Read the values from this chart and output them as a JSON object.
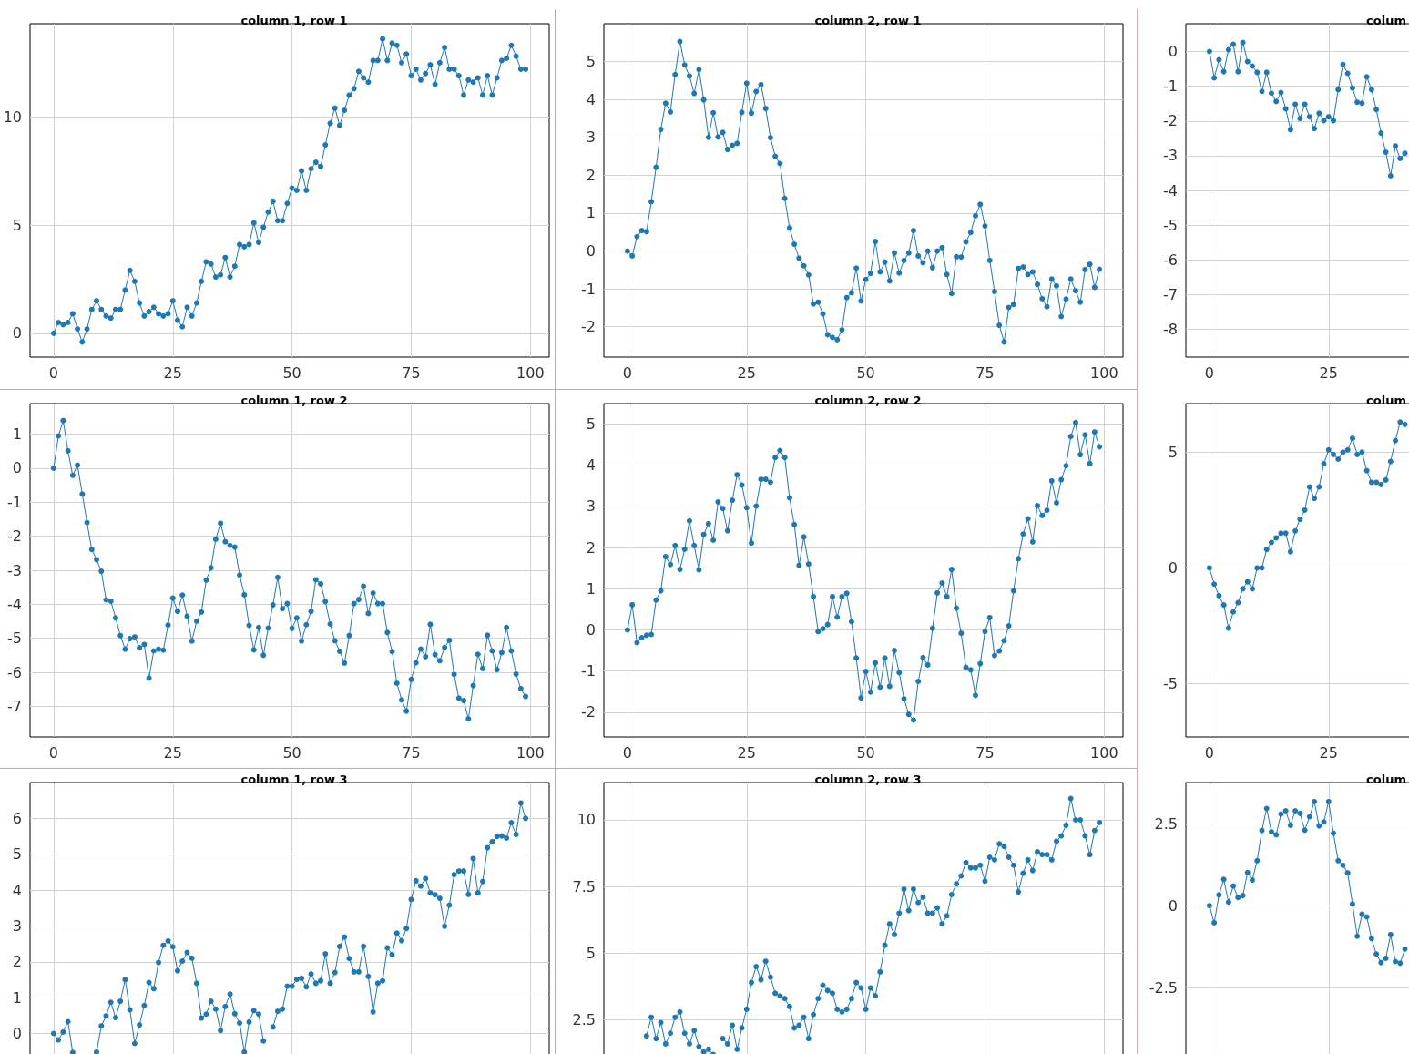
{
  "chart_data": [
    {
      "type": "line",
      "title": "column 1, row 1",
      "marker": "circle",
      "grid": true,
      "xlim": [
        -4.95,
        103.95
      ],
      "xticks": [
        0,
        25,
        50,
        75,
        100
      ],
      "ylim": [
        -1.1,
        14.3
      ],
      "yticks": [
        0,
        5,
        10
      ],
      "x": [
        0,
        1,
        2,
        3,
        4,
        5,
        6,
        7,
        8,
        9,
        10,
        11,
        12,
        13,
        14,
        15,
        16,
        17,
        18,
        19,
        20,
        21,
        22,
        23,
        24,
        25,
        26,
        27,
        28,
        29,
        30,
        31,
        32,
        33,
        34,
        35,
        36,
        37,
        38,
        39,
        40,
        41,
        42,
        43,
        44,
        45,
        46,
        47,
        48,
        49,
        50,
        51,
        52,
        53,
        54,
        55,
        56,
        57,
        58,
        59,
        60,
        61,
        62,
        63,
        64,
        65,
        66,
        67,
        68,
        69,
        70,
        71,
        72,
        73,
        74,
        75,
        76,
        77,
        78,
        79,
        80,
        81,
        82,
        83,
        84,
        85,
        86,
        87,
        88,
        89,
        90,
        91,
        92,
        93,
        94,
        95,
        96,
        97,
        98,
        99
      ],
      "series": [
        {
          "color": "#1f77b4",
          "values": [
            0,
            0.5,
            0.4,
            0.5,
            0.9,
            0.2,
            -0.4,
            0.2,
            1.1,
            1.5,
            1.1,
            0.8,
            0.7,
            1.1,
            1.1,
            2.0,
            2.9,
            2.4,
            1.4,
            0.8,
            1.0,
            1.2,
            0.9,
            0.8,
            0.9,
            1.5,
            0.6,
            0.3,
            1.2,
            0.8,
            1.4,
            2.4,
            3.3,
            3.2,
            2.6,
            2.7,
            3.5,
            2.6,
            3.1,
            4.1,
            4.0,
            4.1,
            5.1,
            4.2,
            4.9,
            5.6,
            6.1,
            5.2,
            5.2,
            6.0,
            6.7,
            6.6,
            7.5,
            6.6,
            7.6,
            7.9,
            7.7,
            8.7,
            9.7,
            10.4,
            9.6,
            10.3,
            11.0,
            11.3,
            12.1,
            11.8,
            11.6,
            12.6,
            12.6,
            13.6,
            12.6,
            13.4,
            13.3,
            12.5,
            12.9,
            11.9,
            12.2,
            11.7,
            12.0,
            12.4,
            11.5,
            12.5,
            13.2,
            12.2,
            12.2,
            11.9,
            11.0,
            11.7,
            11.6,
            11.8,
            11.0,
            11.9,
            11.0,
            11.8,
            12.6,
            12.7,
            13.3,
            12.8,
            12.2,
            12.2
          ]
        }
      ]
    },
    {
      "type": "line",
      "title": "column 2, row 1",
      "marker": "circle",
      "grid": true,
      "xlim": [
        -4.95,
        103.95
      ],
      "xticks": [
        0,
        25,
        50,
        75,
        100
      ],
      "ylim": [
        -2.8,
        6.0
      ],
      "yticks": [
        -2,
        -1,
        0,
        1,
        2,
        3,
        4,
        5
      ],
      "x": [
        0,
        1,
        2,
        3,
        4,
        5,
        6,
        7,
        8,
        9,
        10,
        11,
        12,
        13,
        14,
        15,
        16,
        17,
        18,
        19,
        20,
        21,
        22,
        23,
        24,
        25,
        26,
        27,
        28,
        29,
        30,
        31,
        32,
        33,
        34,
        35,
        36,
        37,
        38,
        39,
        40,
        41,
        42,
        43,
        44,
        45,
        46,
        47,
        48,
        49,
        50,
        51,
        52,
        53,
        54,
        55,
        56,
        57,
        58,
        59,
        60,
        61,
        62,
        63,
        64,
        65,
        66,
        67,
        68,
        69,
        70,
        71,
        72,
        73,
        74,
        75,
        76,
        77,
        78,
        79,
        80,
        81,
        82,
        83,
        84,
        85,
        86,
        87,
        88,
        89,
        90,
        91,
        92,
        93,
        94,
        95,
        96,
        97,
        98,
        99
      ],
      "series": [
        {
          "color": "#1f77b4",
          "values": [
            0,
            -0.13,
            0.38,
            0.54,
            0.51,
            1.3,
            2.21,
            3.21,
            3.9,
            3.67,
            4.66,
            5.53,
            4.91,
            4.62,
            4.16,
            4.79,
            3.99,
            3,
            3.65,
            3.01,
            3.13,
            2.68,
            2.79,
            2.84,
            3.66,
            4.43,
            3.64,
            4.21,
            4.39,
            3.76,
            2.99,
            2.5,
            2.31,
            1.39,
            0.61,
            0.18,
            -0.19,
            -0.39,
            -0.63,
            -1.4,
            -1.35,
            -1.66,
            -2.21,
            -2.28,
            -2.34,
            -2.08,
            -1.23,
            -1.1,
            -0.45,
            -1.32,
            -0.75,
            -0.59,
            0.25,
            -0.55,
            -0.29,
            -0.79,
            -0.05,
            -0.58,
            -0.25,
            -0.05,
            0.54,
            -0.13,
            -0.31,
            0,
            -0.44,
            0,
            0.09,
            -0.62,
            -1.12,
            -0.15,
            -0.16,
            0.24,
            0.49,
            0.93,
            1.23,
            0.66,
            -0.25,
            -1.07,
            -1.96,
            -2.4,
            -1.49,
            -1.41,
            -0.46,
            -0.42,
            -0.62,
            -0.55,
            -0.88,
            -1.26,
            -1.47,
            -0.74,
            -0.92,
            -1.73,
            -1.27,
            -0.74,
            -1.05,
            -1.35,
            -0.49,
            -0.35,
            -0.96,
            -0.48
          ]
        }
      ]
    },
    {
      "type": "line",
      "title": "colum",
      "marker": "circle",
      "grid": true,
      "xlim": [
        -4.95,
        103.95
      ],
      "xticks": [
        0,
        25
      ],
      "ylim": [
        -8.8,
        0.8
      ],
      "yticks": [
        -8,
        -7,
        -6,
        -5,
        -4,
        -3,
        -2,
        -1,
        0
      ],
      "x": [
        0,
        1,
        2,
        3,
        4,
        5,
        6,
        7,
        8,
        9,
        10,
        11,
        12,
        13,
        14,
        15,
        16,
        17,
        18,
        19,
        20,
        21,
        22,
        23,
        24,
        25,
        26,
        27,
        28,
        29,
        30,
        31,
        32,
        33,
        34,
        35,
        36,
        37,
        38,
        39,
        40,
        41
      ],
      "series": [
        {
          "color": "#1f77b4",
          "values": [
            0,
            -0.76,
            -0.24,
            -0.58,
            0.05,
            0.21,
            -0.58,
            0.26,
            -0.29,
            -0.42,
            -0.6,
            -1.15,
            -0.6,
            -1.2,
            -1.44,
            -1.18,
            -1.65,
            -2.25,
            -1.52,
            -1.93,
            -1.52,
            -1.88,
            -2.22,
            -1.78,
            -1.99,
            -1.88,
            -1.99,
            -1.1,
            -0.37,
            -0.63,
            -1.05,
            -1.46,
            -1.49,
            -0.73,
            -1.1,
            -1.67,
            -2.35,
            -2.9,
            -3.58,
            -2.72,
            -3.08,
            -2.93
          ]
        }
      ]
    },
    {
      "type": "line",
      "title": "column 1, row 2",
      "marker": "circle",
      "grid": true,
      "xlim": [
        -4.95,
        103.95
      ],
      "xticks": [
        0,
        25,
        50,
        75,
        100
      ],
      "ylim": [
        -7.9,
        1.9
      ],
      "yticks": [
        -7,
        -6,
        -5,
        -4,
        -3,
        -2,
        -1,
        0,
        1
      ],
      "x": [
        0,
        1,
        2,
        3,
        4,
        5,
        6,
        7,
        8,
        9,
        10,
        11,
        12,
        13,
        14,
        15,
        16,
        17,
        18,
        19,
        20,
        21,
        22,
        23,
        24,
        25,
        26,
        27,
        28,
        29,
        30,
        31,
        32,
        33,
        34,
        35,
        36,
        37,
        38,
        39,
        40,
        41,
        42,
        43,
        44,
        45,
        46,
        47,
        48,
        49,
        50,
        51,
        52,
        53,
        54,
        55,
        56,
        57,
        58,
        59,
        60,
        61,
        62,
        63,
        64,
        65,
        66,
        67,
        68,
        69,
        70,
        71,
        72,
        73,
        74,
        75,
        76,
        77,
        78,
        79,
        80,
        81,
        82,
        83,
        84,
        85,
        86,
        87,
        88,
        89,
        90,
        91,
        92,
        93,
        94,
        95,
        96,
        97,
        98,
        99
      ],
      "series": [
        {
          "color": "#1f77b4",
          "values": [
            0,
            0.95,
            1.4,
            0.51,
            -0.21,
            0.09,
            -0.76,
            -1.6,
            -2.39,
            -2.69,
            -3.03,
            -3.87,
            -3.91,
            -4.4,
            -4.92,
            -5.32,
            -5.01,
            -4.96,
            -5.28,
            -5.18,
            -6.17,
            -5.37,
            -5.32,
            -5.35,
            -4.61,
            -3.82,
            -4.21,
            -3.73,
            -4.35,
            -5.08,
            -4.5,
            -4.23,
            -3.29,
            -2.93,
            -2.09,
            -1.62,
            -2.16,
            -2.27,
            -2.32,
            -3.14,
            -3.72,
            -4.62,
            -5.34,
            -4.68,
            -5.5,
            -4.7,
            -4.02,
            -3.21,
            -4.13,
            -3.98,
            -4.71,
            -4.4,
            -5.08,
            -4.6,
            -4.21,
            -3.28,
            -3.4,
            -3.92,
            -4.58,
            -5.07,
            -5.38,
            -5.73,
            -4.92,
            -3.98,
            -3.86,
            -3.47,
            -4.27,
            -3.67,
            -3.98,
            -3.98,
            -4.83,
            -5.39,
            -6.32,
            -6.81,
            -7.14,
            -6.21,
            -5.72,
            -5.32,
            -5.54,
            -4.59,
            -5.48,
            -5.66,
            -5.27,
            -5.06,
            -6.06,
            -6.76,
            -6.83,
            -7.37,
            -6.39,
            -5.47,
            -5.89,
            -4.91,
            -5.37,
            -5.92,
            -5.42,
            -4.68,
            -5.37,
            -6.05,
            -6.48,
            -6.71
          ]
        }
      ]
    },
    {
      "type": "line",
      "title": "column 2, row 2",
      "marker": "circle",
      "grid": true,
      "xlim": [
        -4.95,
        103.95
      ],
      "xticks": [
        0,
        25,
        50,
        75,
        100
      ],
      "ylim": [
        -2.6,
        5.5
      ],
      "yticks": [
        -2,
        -1,
        0,
        1,
        2,
        3,
        4,
        5
      ],
      "x": [
        0,
        1,
        2,
        3,
        4,
        5,
        6,
        7,
        8,
        9,
        10,
        11,
        12,
        13,
        14,
        15,
        16,
        17,
        18,
        19,
        20,
        21,
        22,
        23,
        24,
        25,
        26,
        27,
        28,
        29,
        30,
        31,
        32,
        33,
        34,
        35,
        36,
        37,
        38,
        39,
        40,
        41,
        42,
        43,
        44,
        45,
        46,
        47,
        48,
        49,
        50,
        51,
        52,
        53,
        54,
        55,
        56,
        57,
        58,
        59,
        60,
        61,
        62,
        63,
        64,
        65,
        66,
        67,
        68,
        69,
        70,
        71,
        72,
        73,
        74,
        75,
        76,
        77,
        78,
        79,
        80,
        81,
        82,
        83,
        84,
        85,
        86,
        87,
        88,
        89,
        90,
        91,
        92,
        93,
        94,
        95,
        96,
        97,
        98,
        99
      ],
      "series": [
        {
          "color": "#1f77b4",
          "values": [
            0,
            0.61,
            -0.31,
            -0.19,
            -0.13,
            -0.11,
            0.73,
            0.95,
            1.78,
            1.59,
            2.05,
            1.47,
            1.96,
            2.65,
            2.05,
            1.46,
            2.32,
            2.58,
            2.18,
            3.11,
            2.95,
            2.41,
            3.15,
            3.77,
            3.52,
            2.97,
            2.11,
            3.01,
            3.66,
            3.66,
            3.59,
            4.19,
            4.36,
            4.19,
            3.21,
            2.56,
            1.57,
            2.26,
            1.6,
            0.81,
            -0.04,
            0.03,
            0.13,
            0.81,
            0.31,
            0.81,
            0.89,
            0.2,
            -0.68,
            -1.65,
            -1.01,
            -1.51,
            -0.8,
            -1.39,
            -0.68,
            -1.37,
            -0.5,
            -1.04,
            -1.67,
            -2.05,
            -2.19,
            -1.25,
            -0.67,
            -0.85,
            0.04,
            0.9,
            1.14,
            0.81,
            1.47,
            0.53,
            -0.08,
            -0.91,
            -0.97,
            -1.59,
            -0.82,
            -0.04,
            0.3,
            -0.62,
            -0.51,
            -0.26,
            0.1,
            0.95,
            1.73,
            2.33,
            2.7,
            2.14,
            3.02,
            2.78,
            2.91,
            3.62,
            3.09,
            3.65,
            3.99,
            4.7,
            5.04,
            4.26,
            4.74,
            4.04,
            4.81,
            4.45
          ]
        }
      ]
    },
    {
      "type": "line",
      "title": "colum",
      "marker": "circle",
      "grid": true,
      "xlim": [
        -4.95,
        103.95
      ],
      "xticks": [
        0,
        25
      ],
      "ylim": [
        -7.3,
        7.1
      ],
      "yticks": [
        -5,
        0,
        5
      ],
      "x": [
        0,
        1,
        2,
        3,
        4,
        5,
        6,
        7,
        8,
        9,
        10,
        11,
        12,
        13,
        14,
        15,
        16,
        17,
        18,
        19,
        20,
        21,
        22,
        23,
        24,
        25,
        26,
        27,
        28,
        29,
        30,
        31,
        32,
        33,
        34,
        35,
        36,
        37,
        38,
        39,
        40,
        41
      ],
      "series": [
        {
          "color": "#1f77b4",
          "values": [
            0,
            -0.7,
            -1.2,
            -1.6,
            -2.6,
            -1.9,
            -1.5,
            -0.9,
            -0.6,
            -0.9,
            0,
            0,
            0.8,
            1.1,
            1.3,
            1.5,
            1.5,
            0.7,
            1.6,
            2.1,
            2.5,
            3.5,
            3.0,
            3.5,
            4.5,
            5.1,
            4.9,
            4.7,
            5.0,
            5.1,
            5.6,
            4.9,
            5.0,
            4.2,
            3.7,
            3.7,
            3.6,
            3.8,
            4.6,
            5.5,
            6.3,
            6.2
          ]
        }
      ]
    },
    {
      "type": "line",
      "title": "column 1, row 3",
      "marker": "circle",
      "grid": true,
      "tick_labels": "y",
      "xlim": [
        -4.95,
        103.95
      ],
      "xticks": [
        0,
        25,
        50,
        75,
        100
      ],
      "ylim": [
        -2.3,
        7.0
      ],
      "yticks": [
        0,
        1,
        2,
        3,
        4,
        5,
        6
      ],
      "x": [
        0,
        1,
        2,
        3,
        4,
        5,
        6,
        7,
        8,
        9,
        10,
        11,
        12,
        13,
        14,
        15,
        16,
        17,
        18,
        19,
        20,
        21,
        22,
        23,
        24,
        25,
        26,
        27,
        28,
        29,
        30,
        31,
        32,
        33,
        34,
        35,
        36,
        37,
        38,
        39,
        40,
        41,
        42,
        43,
        44,
        45,
        46,
        47,
        48,
        49,
        50,
        51,
        52,
        53,
        54,
        55,
        56,
        57,
        58,
        59,
        60,
        61,
        62,
        63,
        64,
        65,
        66,
        67,
        68,
        69,
        70,
        71,
        72,
        73,
        74,
        75,
        76,
        77,
        78,
        79,
        80,
        81,
        82,
        83,
        84,
        85,
        86,
        87,
        88,
        89,
        90,
        91,
        92,
        93,
        94,
        95,
        96,
        97,
        98,
        99
      ],
      "series": [
        {
          "color": "#1f77b4",
          "values": [
            0,
            -0.18,
            0.04,
            0.33,
            -0.53,
            null,
            null,
            null,
            null,
            -0.52,
            0.21,
            0.49,
            0.87,
            0.44,
            0.9,
            1.5,
            0.66,
            -0.28,
            0.24,
            0.78,
            1.42,
            1.25,
            1.98,
            2.46,
            2.58,
            2.42,
            1.75,
            2.02,
            2.26,
            2.1,
            1.4,
            0.43,
            0.54,
            0.9,
            0.68,
            0.08,
            0.75,
            1.1,
            0.55,
            0.29,
            -0.52,
            0.32,
            0.64,
            0.54,
            -0.21,
            null,
            0.18,
            0.62,
            0.68,
            1.32,
            1.32,
            1.51,
            1.54,
            1.3,
            1.66,
            1.4,
            1.47,
            2.22,
            1.4,
            1.7,
            2.43,
            2.69,
            2.09,
            1.72,
            1.72,
            2.43,
            1.59,
            0.6,
            1.4,
            1.47,
            2.39,
            2.2,
            2.8,
            2.59,
            2.93,
            3.74,
            4.26,
            4.11,
            4.32,
            3.92,
            3.87,
            3.77,
            2.99,
            3.58,
            4.43,
            4.53,
            4.53,
            3.88,
            4.88,
            3.92,
            4.24,
            5.18,
            5.35,
            5.5,
            5.51,
            5.45,
            5.88,
            5.55,
            6.43,
            6.0
          ]
        }
      ]
    },
    {
      "type": "line",
      "title": "column 2, row 3",
      "marker": "circle",
      "grid": true,
      "tick_labels": "y",
      "xlim": [
        -4.95,
        103.95
      ],
      "xticks": [
        0,
        25,
        50,
        75,
        100
      ],
      "ylim": [
        -1.1,
        11.4
      ],
      "yticks": [
        2.5,
        5,
        7.5,
        10
      ],
      "x": [
        4,
        5,
        6,
        7,
        8,
        9,
        10,
        11,
        12,
        13,
        14,
        15,
        16,
        17,
        18,
        19,
        20,
        21,
        22,
        23,
        24,
        25,
        26,
        27,
        28,
        29,
        30,
        31,
        32,
        33,
        34,
        35,
        36,
        37,
        38,
        39,
        40,
        41,
        42,
        43,
        44,
        45,
        46,
        47,
        48,
        49,
        50,
        51,
        52,
        53,
        54,
        55,
        56,
        57,
        58,
        59,
        60,
        61,
        62,
        63,
        64,
        65,
        66,
        67,
        68,
        69,
        70,
        71,
        72,
        73,
        74,
        75,
        76,
        77,
        78,
        79,
        80,
        81,
        82,
        83,
        84,
        85,
        86,
        87,
        88,
        89,
        90,
        91,
        92,
        93,
        94,
        95,
        96,
        97,
        98,
        99
      ],
      "series": [
        {
          "color": "#1f77b4",
          "values": [
            1.9,
            2.6,
            1.8,
            2.4,
            1.6,
            2.0,
            2.6,
            2.8,
            2.0,
            1.6,
            2.1,
            1.5,
            1.3,
            1.4,
            1.2,
            null,
            1.8,
            1.6,
            2.3,
            1.4,
            2.2,
            2.9,
            3.9,
            4.5,
            4.0,
            4.7,
            4.1,
            3.5,
            3.4,
            3.3,
            3.0,
            2.2,
            2.3,
            2.6,
            1.8,
            2.7,
            3.3,
            3.8,
            3.6,
            3.5,
            2.9,
            2.8,
            2.9,
            3.3,
            3.9,
            3.7,
            2.9,
            3.7,
            3.4,
            4.3,
            5.3,
            6.1,
            5.7,
            6.5,
            7.4,
            6.6,
            7.4,
            6.9,
            7.1,
            6.5,
            6.5,
            6.7,
            6.1,
            6.4,
            7.2,
            7.6,
            7.9,
            8.4,
            8.2,
            8.2,
            8.3,
            7.7,
            8.6,
            8.5,
            9.1,
            9.0,
            8.6,
            8.3,
            7.3,
            8.0,
            8.5,
            8.1,
            8.8,
            8.7,
            8.7,
            8.5,
            9.2,
            9.4,
            9.8,
            10.8,
            10.0,
            10.0,
            9.4,
            8.7,
            9.6,
            9.9
          ]
        }
      ]
    },
    {
      "type": "line",
      "title": "colum",
      "marker": "circle",
      "grid": true,
      "tick_labels": "y",
      "xlim": [
        -4.95,
        103.95
      ],
      "xticks": [
        0,
        25
      ],
      "ylim": [
        -6.4,
        3.75
      ],
      "yticks": [
        -2.5,
        0,
        2.5
      ],
      "x": [
        0,
        1,
        2,
        3,
        4,
        5,
        6,
        7,
        8,
        9,
        10,
        11,
        12,
        13,
        14,
        15,
        16,
        17,
        18,
        19,
        20,
        21,
        22,
        23,
        24,
        25,
        26,
        27,
        28,
        29,
        30,
        31,
        32,
        33,
        34,
        35,
        36,
        37,
        38,
        39,
        40,
        41
      ],
      "series": [
        {
          "color": "#1f77b4",
          "values": [
            0,
            -0.52,
            0.33,
            0.8,
            0.11,
            0.6,
            0.25,
            0.31,
            1.01,
            0.78,
            1.37,
            2.29,
            2.96,
            2.25,
            2.16,
            2.79,
            2.89,
            2.45,
            2.89,
            2.81,
            2.3,
            2.71,
            3.17,
            2.43,
            2.55,
            3.17,
            2.21,
            1.37,
            1.23,
            1.0,
            0.05,
            -0.93,
            -0.26,
            -0.34,
            -1.0,
            -1.47,
            -1.73,
            -1.6,
            -0.88,
            -1.7,
            -1.75,
            -1.32
          ]
        }
      ]
    }
  ]
}
